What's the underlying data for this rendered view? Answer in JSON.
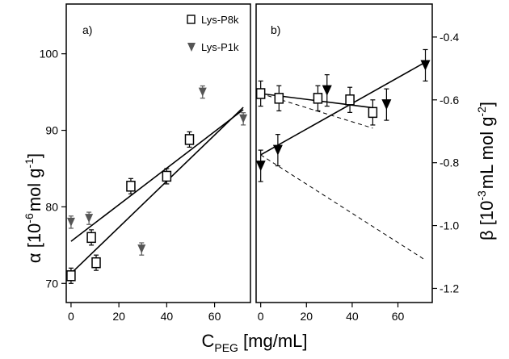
{
  "chart_data": [
    {
      "panel": "a)",
      "type": "scatter",
      "xlabel": "C",
      "xlabel_sub": "PEG",
      "xlabel_unit": " [mg/mL]",
      "ylabel_symbol": "α",
      "ylabel_text": " [10",
      "ylabel_exp": "-6",
      "ylabel_unit": "mol g",
      "ylabel_unit_exp": "-1",
      "ylabel_close": "]",
      "xlim": [
        -2,
        75
      ],
      "ylim": [
        67.5,
        106.5
      ],
      "xticks": [
        0,
        20,
        40,
        60
      ],
      "xtick_labels": [
        "0",
        "20",
        "40",
        "60"
      ],
      "yticks": [
        70,
        80,
        90,
        100
      ],
      "ytick_labels": [
        "70",
        "80",
        "90",
        "100"
      ],
      "legend_position": "top-right",
      "series": [
        {
          "name": "Lys-P8k",
          "marker": "open-square",
          "color": "#000000",
          "x": [
            0,
            8.5,
            10.5,
            25,
            40,
            49.5
          ],
          "y": [
            71,
            76,
            72.7,
            82.7,
            84,
            88.8
          ],
          "err": [
            1,
            1,
            1,
            1,
            1,
            1
          ]
        },
        {
          "name": "Lys-P1k",
          "marker": "filled-triangle-down",
          "color": "#555555",
          "x": [
            0,
            7.5,
            29.5,
            55,
            72
          ],
          "y": [
            78,
            78.5,
            74.5,
            95,
            91.5
          ],
          "err": [
            0.8,
            0.8,
            0.8,
            0.8,
            0.8
          ]
        }
      ],
      "fit_lines": [
        {
          "series": "Lys-P8k",
          "x": [
            0,
            72
          ],
          "y": [
            71.3,
            93
          ]
        },
        {
          "series": "Lys-P1k",
          "x": [
            0,
            72
          ],
          "y": [
            75.5,
            92.7
          ]
        }
      ]
    },
    {
      "panel": "b)",
      "type": "scatter",
      "ylabel_symbol": "β",
      "ylabel_text": " [10",
      "ylabel_exp": "-3",
      "ylabel_unit": "mL mol g",
      "ylabel_unit_exp": "-2",
      "ylabel_close": "]",
      "xlim": [
        -2,
        75
      ],
      "ylim": [
        -1.245,
        -0.295
      ],
      "xticks": [
        0,
        20,
        40,
        60
      ],
      "xtick_labels": [
        "0",
        "20",
        "40",
        "60"
      ],
      "yticks": [
        -0.4,
        -0.6,
        -0.8,
        -1.0,
        -1.2
      ],
      "ytick_labels": [
        "-0.4",
        "-0.6",
        "-0.8",
        "-1.0",
        "-1.2"
      ],
      "series": [
        {
          "name": "Lys-P8k",
          "marker": "open-square",
          "color": "#000000",
          "x": [
            0,
            8,
            25,
            39,
            49
          ],
          "y": [
            -0.58,
            -0.595,
            -0.595,
            -0.6,
            -0.64
          ],
          "err": [
            0.04,
            0.04,
            0.04,
            0.04,
            0.04
          ]
        },
        {
          "name": "Lys-P1k",
          "marker": "filled-triangle-down",
          "color": "#000000",
          "x": [
            0,
            7.5,
            29,
            55,
            72
          ],
          "y": [
            -0.81,
            -0.76,
            -0.57,
            -0.615,
            -0.49
          ],
          "err": [
            0.05,
            0.05,
            0.05,
            0.05,
            0.05
          ]
        }
      ],
      "fit_lines": [
        {
          "series": "Lys-P8k",
          "style": "solid",
          "x": [
            0,
            49
          ],
          "y": [
            -0.58,
            -0.625
          ]
        },
        {
          "series": "Lys-P8k",
          "style": "dashed",
          "x": [
            0,
            49
          ],
          "y": [
            -0.58,
            -0.69
          ]
        },
        {
          "series": "Lys-P1k",
          "style": "solid",
          "x": [
            0,
            72
          ],
          "y": [
            -0.775,
            -0.48
          ]
        },
        {
          "series": "Lys-P1k",
          "style": "dashed",
          "x": [
            0,
            72
          ],
          "y": [
            -0.775,
            -1.11
          ]
        }
      ]
    }
  ]
}
